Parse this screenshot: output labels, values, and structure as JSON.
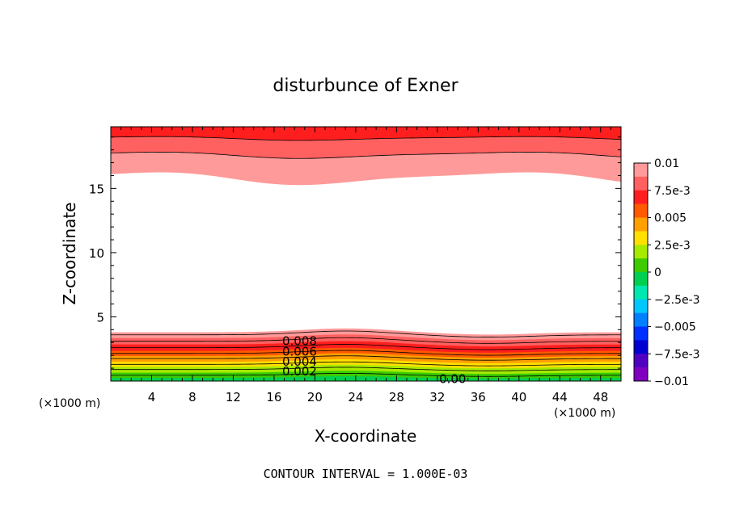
{
  "chart_data": {
    "type": "contour",
    "title": "disturbunce of Exner",
    "xlabel": "X-coordinate",
    "ylabel": "Z-coordinate",
    "x_unit": "(×1000 m)",
    "y_unit": "(×1000 m)",
    "xlim": [
      0,
      50
    ],
    "ylim": [
      0,
      19.8
    ],
    "x_ticks": [
      4,
      8,
      12,
      16,
      20,
      24,
      28,
      32,
      36,
      40,
      44,
      48
    ],
    "y_ticks": [
      5,
      10,
      15
    ],
    "footer": "CONTOUR INTERVAL = 1.000E-03",
    "contour_labels": [
      {
        "text": "0.008",
        "x": 18.5,
        "z": 3.1
      },
      {
        "text": "0.006",
        "x": 18.5,
        "z": 2.3
      },
      {
        "text": "0.004",
        "x": 18.5,
        "z": 1.5
      },
      {
        "text": "0.002",
        "x": 18.5,
        "z": 0.75
      },
      {
        "text": "0.00",
        "x": 33.5,
        "z": 0.15
      }
    ],
    "colorbar": {
      "labels": [
        "0.01",
        "7.5e-3",
        "0.005",
        "2.5e-3",
        "0",
        "−2.5e-3",
        "−0.005",
        "−7.5e-3",
        "−0.01"
      ],
      "colors": [
        "#ff9a9a",
        "#ff6060",
        "#ff1e1e",
        "#ff5a00",
        "#ffa000",
        "#ffe000",
        "#a6ea00",
        "#3ccc00",
        "#00d050",
        "#00e8b0",
        "#00c8ff",
        "#0080ff",
        "#0030ff",
        "#0000d0",
        "#5000c0",
        "#8000c0"
      ]
    }
  }
}
